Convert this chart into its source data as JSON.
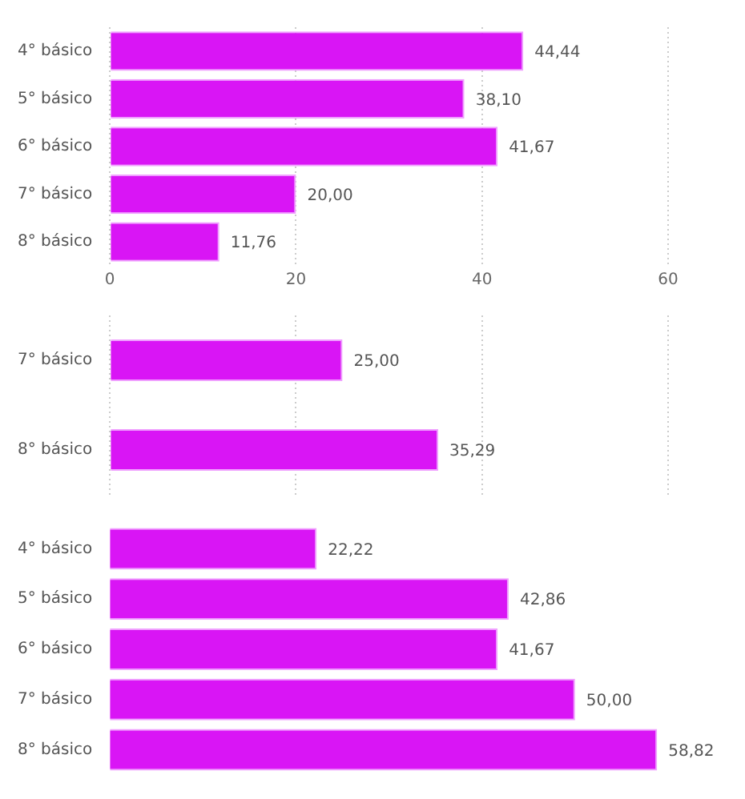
{
  "chart_data": [
    {
      "type": "bar",
      "orientation": "horizontal",
      "categories": [
        "4° básico",
        "5° básico",
        "6° básico",
        "7° básico",
        "8° básico"
      ],
      "values": [
        44.44,
        38.1,
        41.67,
        20.0,
        11.76
      ],
      "value_labels": [
        "44,44",
        "38,10",
        "41,67",
        "20,00",
        "11,76"
      ],
      "color": "#d915f5",
      "xlim": [
        0,
        60
      ],
      "xticks": [
        0,
        20,
        40,
        60
      ],
      "grid": "x"
    },
    {
      "type": "bar",
      "orientation": "horizontal",
      "categories": [
        "7° básico",
        "8° básico"
      ],
      "values": [
        25.0,
        35.29
      ],
      "value_labels": [
        "25,00",
        "35,29"
      ],
      "color": "#d915f5",
      "xlim": [
        0,
        60
      ],
      "xticks": [
        0,
        20,
        40,
        60
      ],
      "grid": "x",
      "tick_labels": "y"
    },
    {
      "type": "bar",
      "orientation": "horizontal",
      "categories": [
        "4° básico",
        "5° básico",
        "6° básico",
        "7° básico",
        "8° básico"
      ],
      "values": [
        22.22,
        42.86,
        41.67,
        50.0,
        58.82
      ],
      "value_labels": [
        "22,22",
        "42,86",
        "41,67",
        "50,00",
        "58,82"
      ],
      "color": "#d915f5",
      "xlim": [
        0,
        60
      ],
      "xticks": [
        0,
        20,
        40,
        60
      ],
      "tick_labels": "y"
    }
  ]
}
